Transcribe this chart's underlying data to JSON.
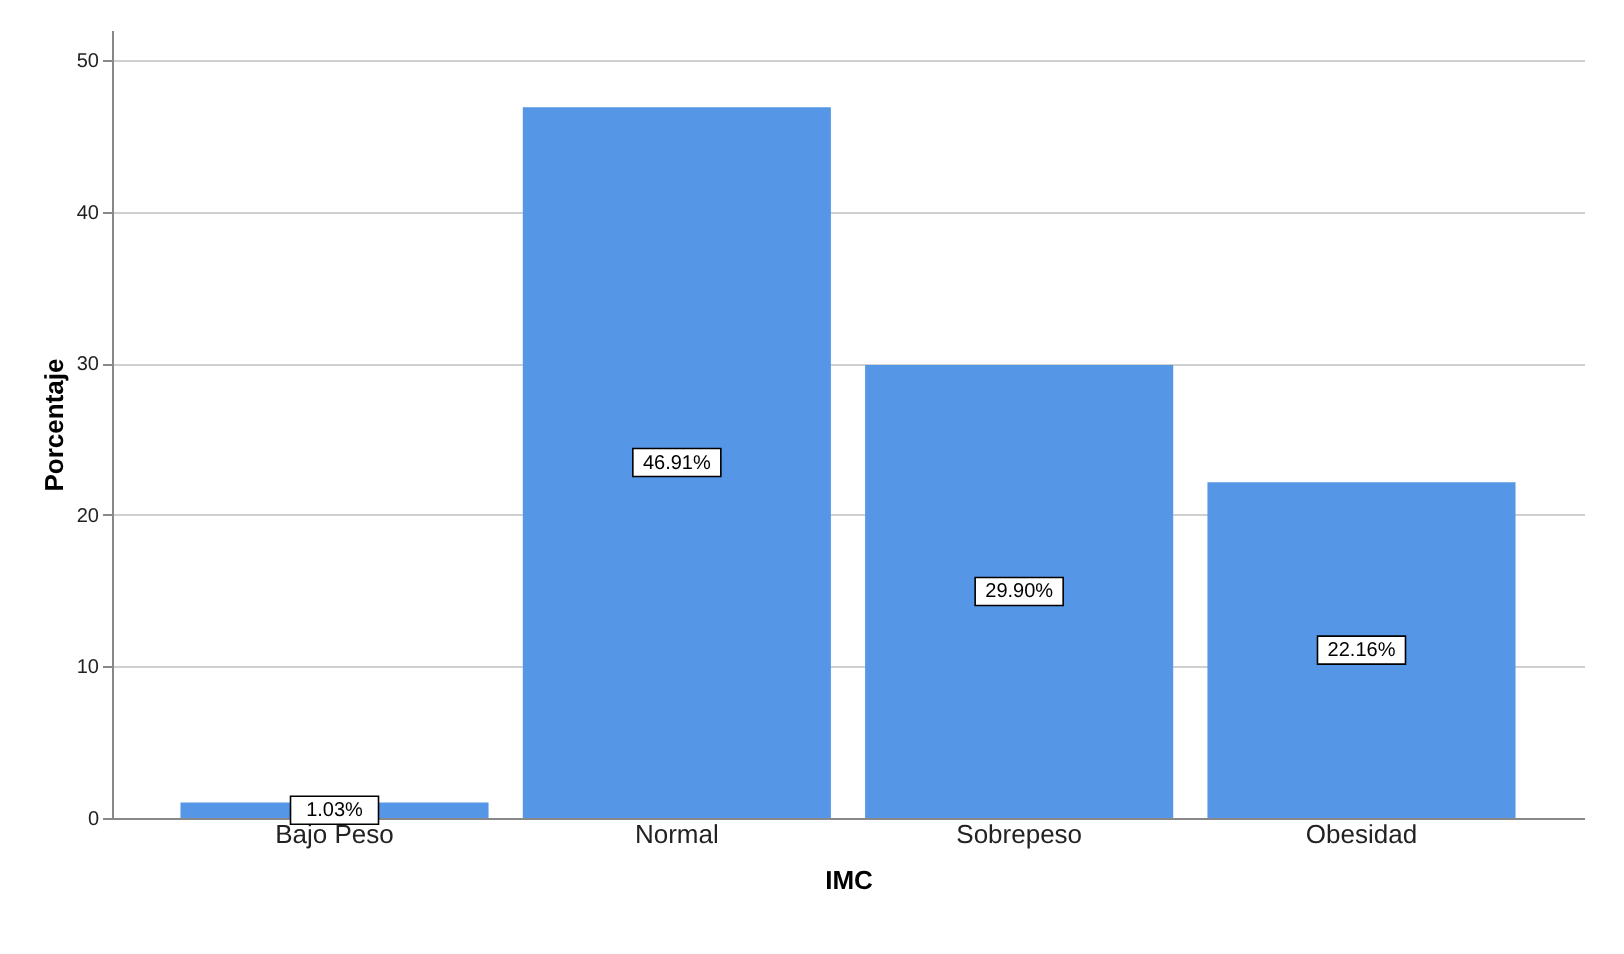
{
  "chart_data": {
    "type": "bar",
    "xlabel": "IMC",
    "ylabel": "Porcentaje",
    "categories": [
      "Bajo Peso",
      "Normal",
      "Sobrepeso",
      "Obesidad"
    ],
    "values": [
      1.03,
      46.91,
      29.9,
      22.16
    ],
    "value_labels": [
      "1.03%",
      "46.91%",
      "29.90%",
      "22.16%"
    ],
    "color": "#5596e6",
    "ylim": [
      0,
      52
    ],
    "yticks": [
      0,
      10,
      20,
      30,
      40,
      50
    ],
    "grid": "y"
  }
}
